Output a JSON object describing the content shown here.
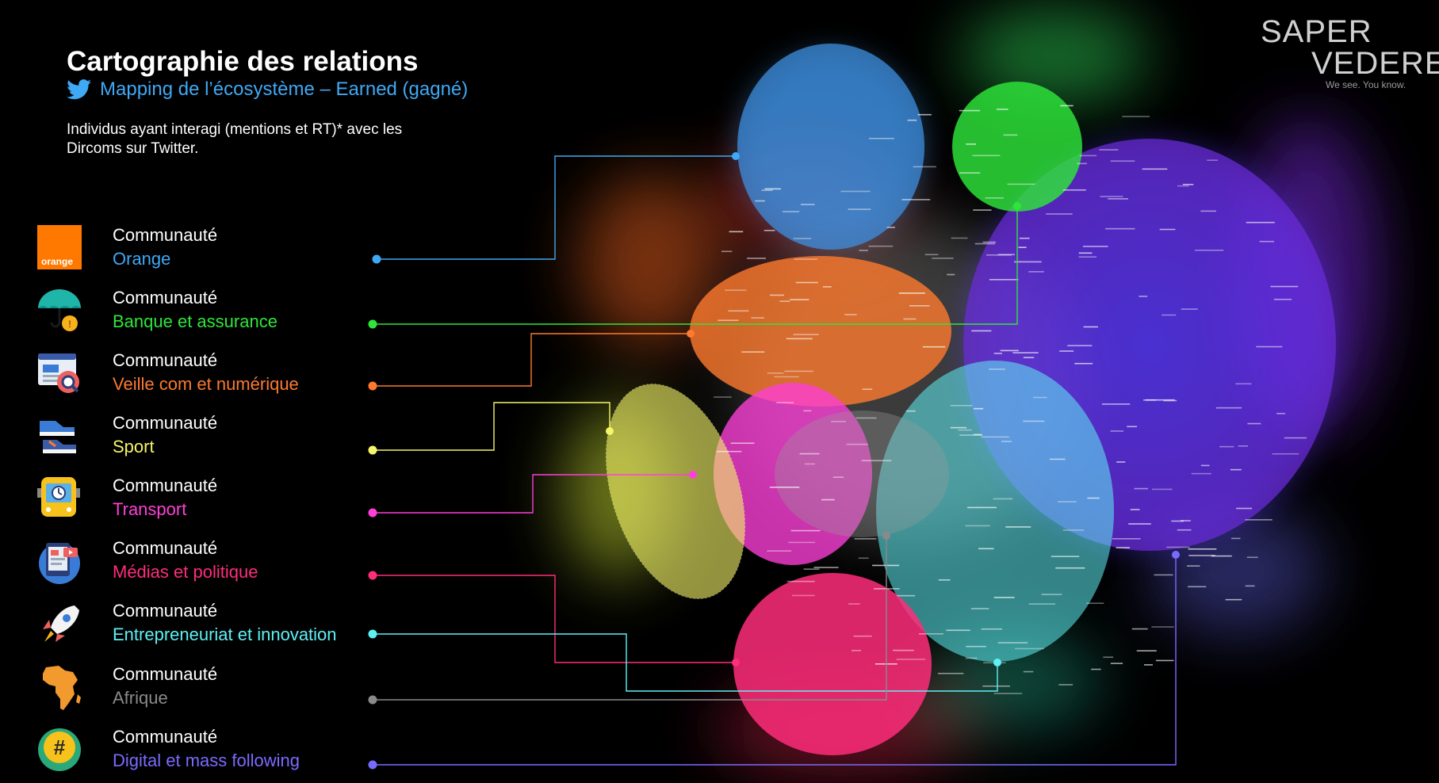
{
  "title": "Cartographie des relations",
  "subtitle": "Mapping de l’écosystème – Earned (gagné)",
  "description": "Individus ayant interagi (mentions et RT)* avec les Dircoms sur Twitter.",
  "logo": {
    "line1": "SAPER",
    "line2": "VEDERE",
    "tagline": "We see. You know."
  },
  "icons": {
    "subtitle": "twitter-bird-icon"
  },
  "communities": [
    {
      "prefix": "Communauté",
      "name": "Orange",
      "color": "#3fa9f5",
      "icon": "orange-logo-icon",
      "icon_text": "orange"
    },
    {
      "prefix": "Communauté",
      "name": "Banque et assurance",
      "color": "#2ee63a",
      "icon": "umbrella-coin-icon"
    },
    {
      "prefix": "Communauté",
      "name": "Veille com et numérique",
      "color": "#ff7a2e",
      "icon": "browser-magnifier-icon"
    },
    {
      "prefix": "Communauté",
      "name": "Sport",
      "color": "#f5f56a",
      "icon": "sneaker-icon"
    },
    {
      "prefix": "Communauté",
      "name": "Transport",
      "color": "#ff3fd8",
      "icon": "bus-icon"
    },
    {
      "prefix": "Communauté",
      "name": "Médias et politique",
      "color": "#ff2d7a",
      "icon": "media-tablet-icon"
    },
    {
      "prefix": "Communauté",
      "name": "Entrepreneuriat et innovation",
      "color": "#5ff0f5",
      "icon": "rocket-icon"
    },
    {
      "prefix": "Communauté",
      "name": "Afrique",
      "color": "#8a8a8a",
      "icon": "africa-map-icon"
    },
    {
      "prefix": "Communauté",
      "name": "Digital et mass following",
      "color": "#7a6bff",
      "icon": "hashtag-bubble-icon"
    }
  ]
}
